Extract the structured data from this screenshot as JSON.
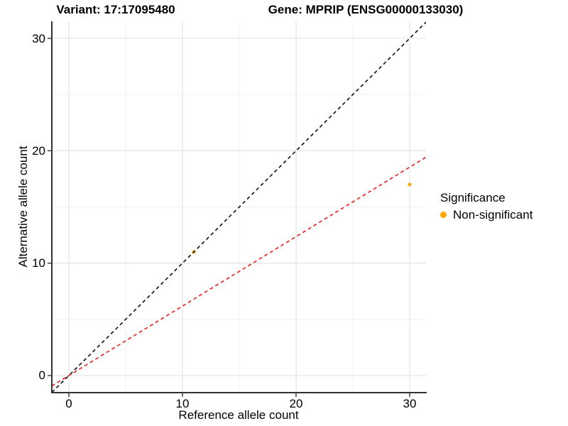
{
  "title": {
    "variant": "Variant: 17:17095480",
    "gene": "Gene: MPRIP (ENSG00000133030)"
  },
  "legend": {
    "title": "Significance",
    "items": [
      {
        "label": "Non-significant",
        "color": "#FFA500",
        "icon": "point-icon"
      }
    ]
  },
  "chart_data": {
    "type": "scatter",
    "title_left": "Variant: 17:17095480",
    "title_right": "Gene: MPRIP (ENSG00000133030)",
    "xlabel": "Reference allele count",
    "ylabel": "Alternative allele count",
    "x_ticks": [
      0,
      10,
      20,
      30
    ],
    "y_ticks": [
      0,
      10,
      20,
      30
    ],
    "xlim": [
      -1.5,
      31.44
    ],
    "ylim": [
      -1.52,
      31.52
    ],
    "grid": "major+minor",
    "legend_position": "right",
    "series": [
      {
        "name": "Non-significant",
        "color": "#FFA500",
        "point_radius": 2.5,
        "points": [
          [
            11,
            11
          ],
          [
            30,
            17
          ]
        ]
      }
    ],
    "reference_lines": [
      {
        "name": "identity-line",
        "slope": 1,
        "intercept": 0,
        "color": "#1A1A1A",
        "dashed": true
      },
      {
        "name": "fit-line",
        "slope": 0.618,
        "intercept": 0,
        "color": "#E82828",
        "dashed": true
      }
    ],
    "colors": {
      "background": "#FFFFFF",
      "grid_major": "#E3E3E3",
      "grid_minor": "#F1F1F1",
      "axis_line": "#333333",
      "tick_mark": "#333333",
      "text": "#000000"
    }
  }
}
